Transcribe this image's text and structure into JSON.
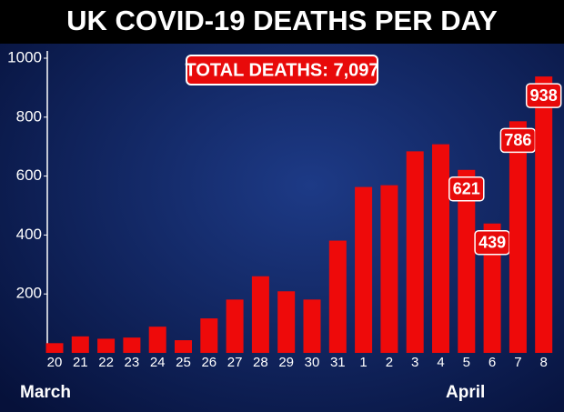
{
  "chart_data": {
    "type": "bar",
    "title": "UK COVID-19 DEATHS PER DAY",
    "annotation": "TOTAL DEATHS: 7,097",
    "categories": [
      "20",
      "21",
      "22",
      "23",
      "24",
      "25",
      "26",
      "27",
      "28",
      "29",
      "30",
      "31",
      "1",
      "2",
      "3",
      "4",
      "5",
      "6",
      "7",
      "8"
    ],
    "values": [
      33,
      56,
      48,
      52,
      89,
      43,
      117,
      181,
      260,
      209,
      181,
      381,
      563,
      569,
      684,
      708,
      621,
      439,
      786,
      938
    ],
    "value_labels": [
      null,
      null,
      null,
      null,
      null,
      null,
      null,
      null,
      null,
      null,
      null,
      null,
      null,
      null,
      null,
      null,
      "621",
      "439",
      "786",
      "938"
    ],
    "months": [
      "March",
      "April"
    ],
    "color": "#ee0a0a",
    "ylim": [
      0,
      1000
    ],
    "yticks": [
      200,
      400,
      600,
      800,
      1000
    ],
    "grid": false
  }
}
